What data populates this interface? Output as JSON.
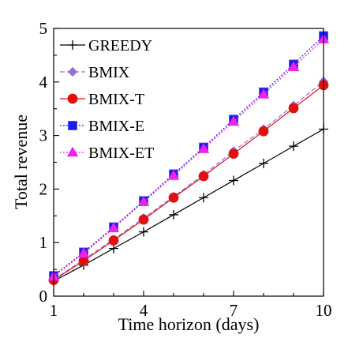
{
  "chart_data": {
    "type": "line",
    "title": "",
    "xlabel": "Time horizon (days)",
    "ylabel": "Total revenue",
    "xlim": [
      1,
      10
    ],
    "ylim": [
      0,
      5
    ],
    "xticks": [
      1,
      4,
      7,
      10
    ],
    "yticks": [
      0,
      1,
      2,
      3,
      4,
      5
    ],
    "grid": false,
    "legend_position": "top-left",
    "x": [
      1,
      2,
      3,
      4,
      5,
      6,
      7,
      8,
      9,
      10
    ],
    "series": [
      {
        "name": "GREEDY",
        "values": [
          0.28,
          0.58,
          0.89,
          1.2,
          1.52,
          1.84,
          2.16,
          2.48,
          2.8,
          3.12
        ],
        "color": "#000000",
        "marker": "plus",
        "dash": "solid"
      },
      {
        "name": "BMIX",
        "values": [
          0.31,
          0.68,
          1.06,
          1.46,
          1.86,
          2.27,
          2.71,
          3.12,
          3.56,
          4.01
        ],
        "color": "#9370db",
        "marker": "diamond",
        "dash": "dashed"
      },
      {
        "name": "BMIX-T",
        "values": [
          0.3,
          0.66,
          1.04,
          1.43,
          1.84,
          2.24,
          2.66,
          3.08,
          3.51,
          3.94
        ],
        "color": "#e01010",
        "marker": "circle",
        "dash": "solid"
      },
      {
        "name": "BMIX-E",
        "values": [
          0.38,
          0.82,
          1.29,
          1.78,
          2.28,
          2.78,
          3.3,
          3.81,
          4.33,
          4.86
        ],
        "color": "#1a1aee",
        "marker": "square",
        "dash": "dotted"
      },
      {
        "name": "BMIX-ET",
        "values": [
          0.37,
          0.8,
          1.27,
          1.76,
          2.25,
          2.75,
          3.26,
          3.77,
          4.28,
          4.8
        ],
        "color": "#ee22ee",
        "marker": "triangle",
        "dash": "dotted"
      }
    ]
  }
}
